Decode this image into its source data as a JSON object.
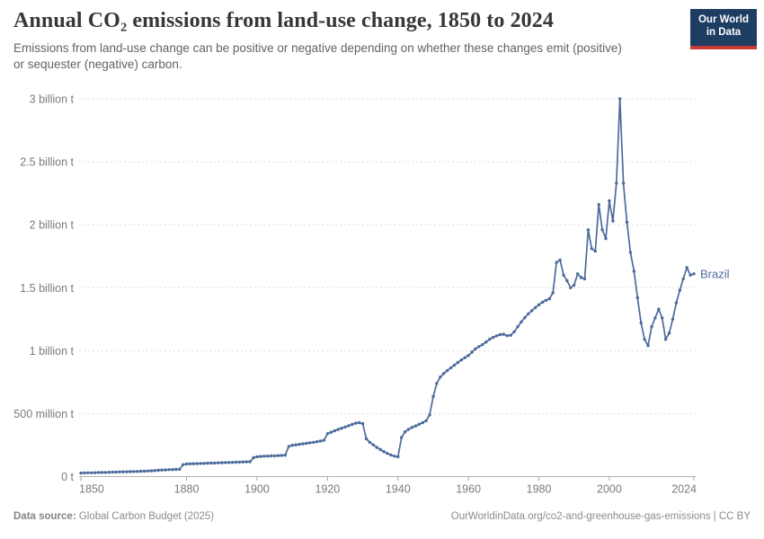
{
  "header": {
    "title": "Annual CO₂ emissions from land-use change, 1850 to 2024",
    "subtitle": "Emissions from land-use change can be positive or negative depending on whether these changes emit (positive) or sequester (negative) carbon."
  },
  "logo": {
    "line1": "Our World",
    "line2": "in Data",
    "bg_color": "#1d3d63",
    "accent_color": "#cc3a36"
  },
  "footer": {
    "source_label": "Data source:",
    "source_value": " Global Carbon Budget (2025)",
    "citation": "OurWorldinData.org/co2-and-greenhouse-gas-emissions | CC BY"
  },
  "chart_data": {
    "type": "line",
    "title": "Annual CO₂ emissions from land-use change, 1850 to 2024",
    "unit": "tonnes of CO₂",
    "grid": "dashed-horizontal",
    "legend_position": "end-of-line-label",
    "xlim": [
      1850,
      2024
    ],
    "ylim_million_t": [
      0,
      3000
    ],
    "x_ticks": [
      1850,
      1880,
      1900,
      1920,
      1940,
      1960,
      1980,
      2000,
      2024
    ],
    "y_ticks": {
      "values_million_t": [
        0,
        500,
        1000,
        1500,
        2000,
        2500,
        3000
      ],
      "labels": [
        "0 t",
        "500 million t",
        "1 billion t",
        "1.5 billion t",
        "2 billion t",
        "2.5 billion t",
        "3 billion t"
      ]
    },
    "series": [
      {
        "name": "Brazil",
        "color": "#4C6A9C",
        "year_start": 1850,
        "year_end": 2024,
        "values_million_t": [
          28,
          29,
          30,
          30,
          31,
          32,
          33,
          33,
          34,
          35,
          36,
          37,
          38,
          38,
          39,
          40,
          41,
          42,
          43,
          44,
          46,
          48,
          50,
          52,
          53,
          55,
          56,
          57,
          58,
          95,
          100,
          101,
          102,
          103,
          104,
          105,
          106,
          107,
          108,
          109,
          110,
          111,
          112,
          113,
          114,
          115,
          116,
          117,
          118,
          150,
          158,
          160,
          162,
          163,
          164,
          165,
          166,
          168,
          170,
          240,
          248,
          252,
          256,
          260,
          264,
          268,
          272,
          277,
          282,
          288,
          340,
          352,
          363,
          374,
          384,
          394,
          404,
          414,
          424,
          428,
          420,
          300,
          272,
          252,
          232,
          214,
          198,
          183,
          171,
          162,
          157,
          310,
          355,
          375,
          390,
          402,
          415,
          428,
          443,
          490,
          635,
          740,
          790,
          818,
          842,
          864,
          885,
          906,
          926,
          944,
          962,
          988,
          1015,
          1032,
          1048,
          1068,
          1090,
          1105,
          1118,
          1127,
          1130,
          1119,
          1122,
          1150,
          1190,
          1228,
          1262,
          1292,
          1318,
          1342,
          1364,
          1385,
          1400,
          1412,
          1460,
          1700,
          1720,
          1600,
          1555,
          1500,
          1520,
          1610,
          1580,
          1570,
          1960,
          1810,
          1790,
          2160,
          1960,
          1890,
          2190,
          2030,
          2330,
          3000,
          2330,
          2020,
          1780,
          1630,
          1420,
          1220,
          1090,
          1040,
          1190,
          1260,
          1330,
          1260,
          1090,
          1140,
          1250,
          1380,
          1480,
          1570,
          1660,
          1600,
          1610
        ]
      }
    ],
    "end_label": "Brazil",
    "colors": {
      "grid": "#dcdcdc",
      "axis": "#b3b3b3",
      "tick": "#a3a3a3",
      "tick_label": "#7a7a7a"
    }
  }
}
